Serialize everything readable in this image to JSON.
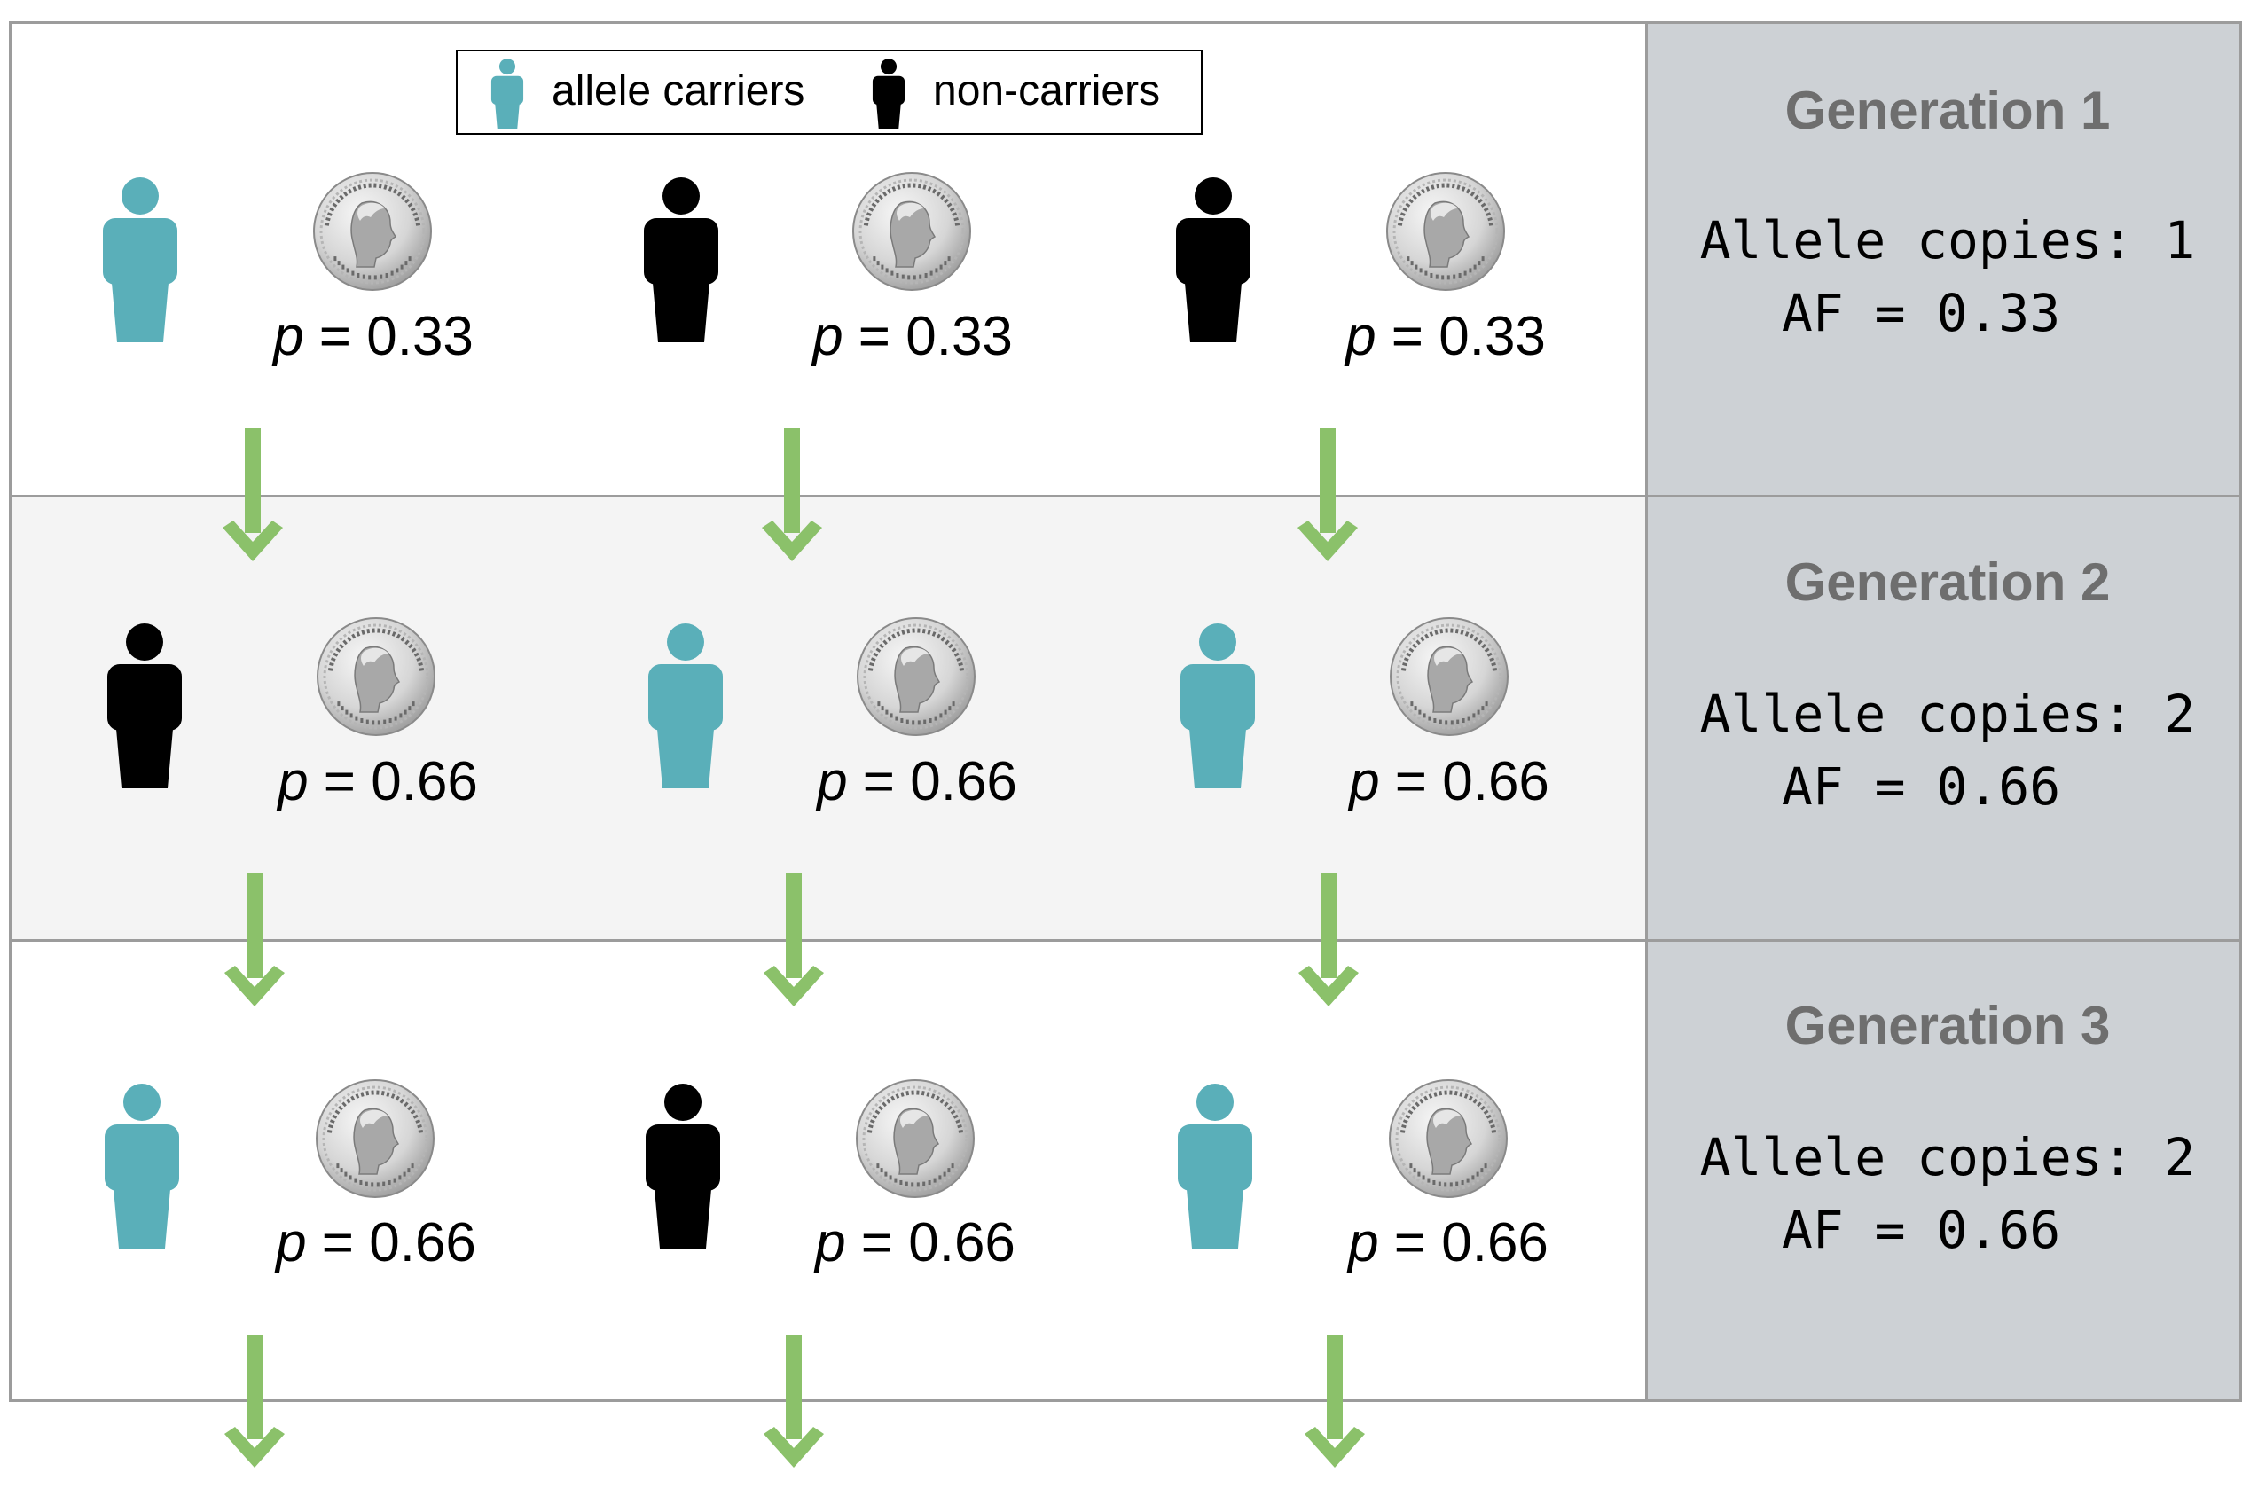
{
  "colors": {
    "carrier": "#5aafb9",
    "non_carrier": "#000000",
    "arrow": "#8bc16a",
    "panel_gray": "#cdd1d5",
    "band_light": "#f4f4f4",
    "generation_title": "#6e6e6e"
  },
  "legend": {
    "carrier_label": "allele carriers",
    "non_carrier_label": "non-carriers"
  },
  "p_symbol": "p",
  "generations": [
    {
      "title": "Generation 1",
      "allele_copies_label": "Allele copies: 1",
      "af_label": "AF = 0.33",
      "individuals": [
        {
          "status": "carrier",
          "p_value": "= 0.33"
        },
        {
          "status": "non-carrier",
          "p_value": "= 0.33"
        },
        {
          "status": "non-carrier",
          "p_value": "= 0.33"
        }
      ]
    },
    {
      "title": "Generation 2",
      "allele_copies_label": "Allele copies: 2",
      "af_label": "AF = 0.66",
      "individuals": [
        {
          "status": "non-carrier",
          "p_value": "= 0.66"
        },
        {
          "status": "carrier",
          "p_value": "= 0.66"
        },
        {
          "status": "carrier",
          "p_value": "= 0.66"
        }
      ]
    },
    {
      "title": "Generation 3",
      "allele_copies_label": "Allele copies: 2",
      "af_label": "AF = 0.66",
      "individuals": [
        {
          "status": "carrier",
          "p_value": "= 0.66"
        },
        {
          "status": "non-carrier",
          "p_value": "= 0.66"
        },
        {
          "status": "carrier",
          "p_value": "= 0.66"
        }
      ]
    }
  ],
  "coin_icon": "quarter-dollar-coin",
  "person_icon": "person-silhouette",
  "arrow_icon": "down-arrow"
}
